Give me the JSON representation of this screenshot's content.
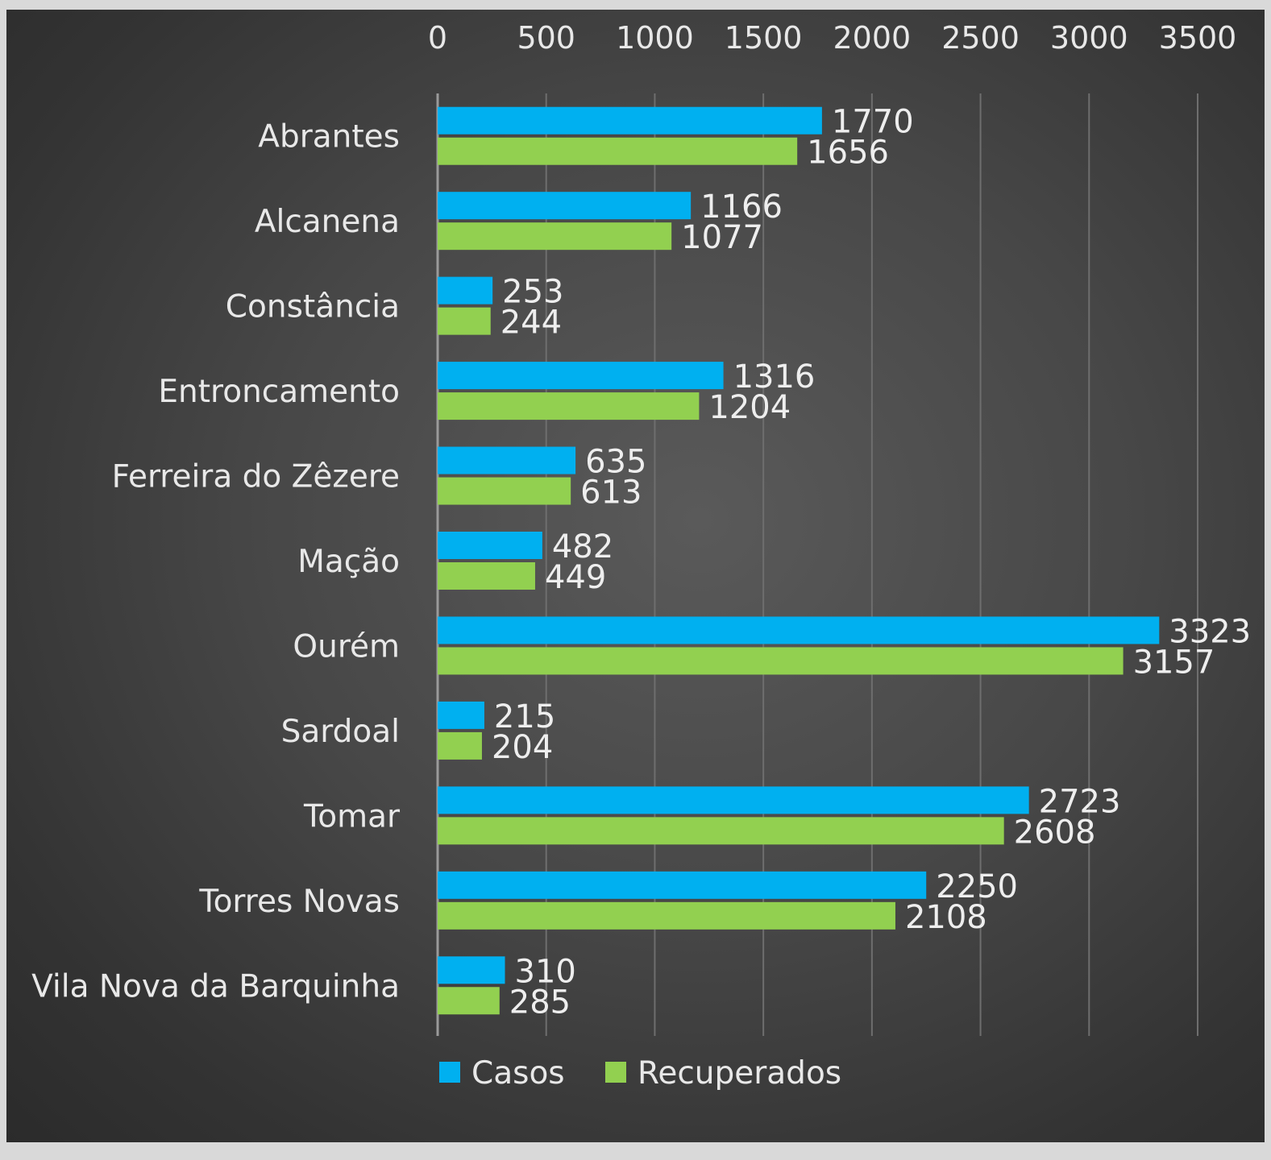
{
  "chart_data": {
    "type": "bar",
    "orientation": "horizontal",
    "categories": [
      "Abrantes",
      "Alcanena",
      "Constância",
      "Entroncamento",
      "Ferreira do Zêzere",
      "Mação",
      "Ourém",
      "Sardoal",
      "Tomar",
      "Torres Novas",
      "Vila Nova da Barquinha"
    ],
    "series": [
      {
        "name": "Casos",
        "color": "#00b0f0",
        "values": [
          1770,
          1166,
          253,
          1316,
          635,
          482,
          3323,
          215,
          2723,
          2250,
          310
        ]
      },
      {
        "name": "Recuperados",
        "color": "#92d050",
        "values": [
          1656,
          1077,
          244,
          1204,
          613,
          449,
          3157,
          204,
          2608,
          2108,
          285
        ]
      }
    ],
    "xlim": [
      0,
      3500
    ],
    "xticks": [
      "0",
      "500",
      "1000",
      "1500",
      "2000",
      "2500",
      "3000",
      "3500"
    ],
    "x_axis_position": "top",
    "grid": true,
    "legend_position": "bottom",
    "data_labels": true,
    "background_color": "#404040"
  }
}
